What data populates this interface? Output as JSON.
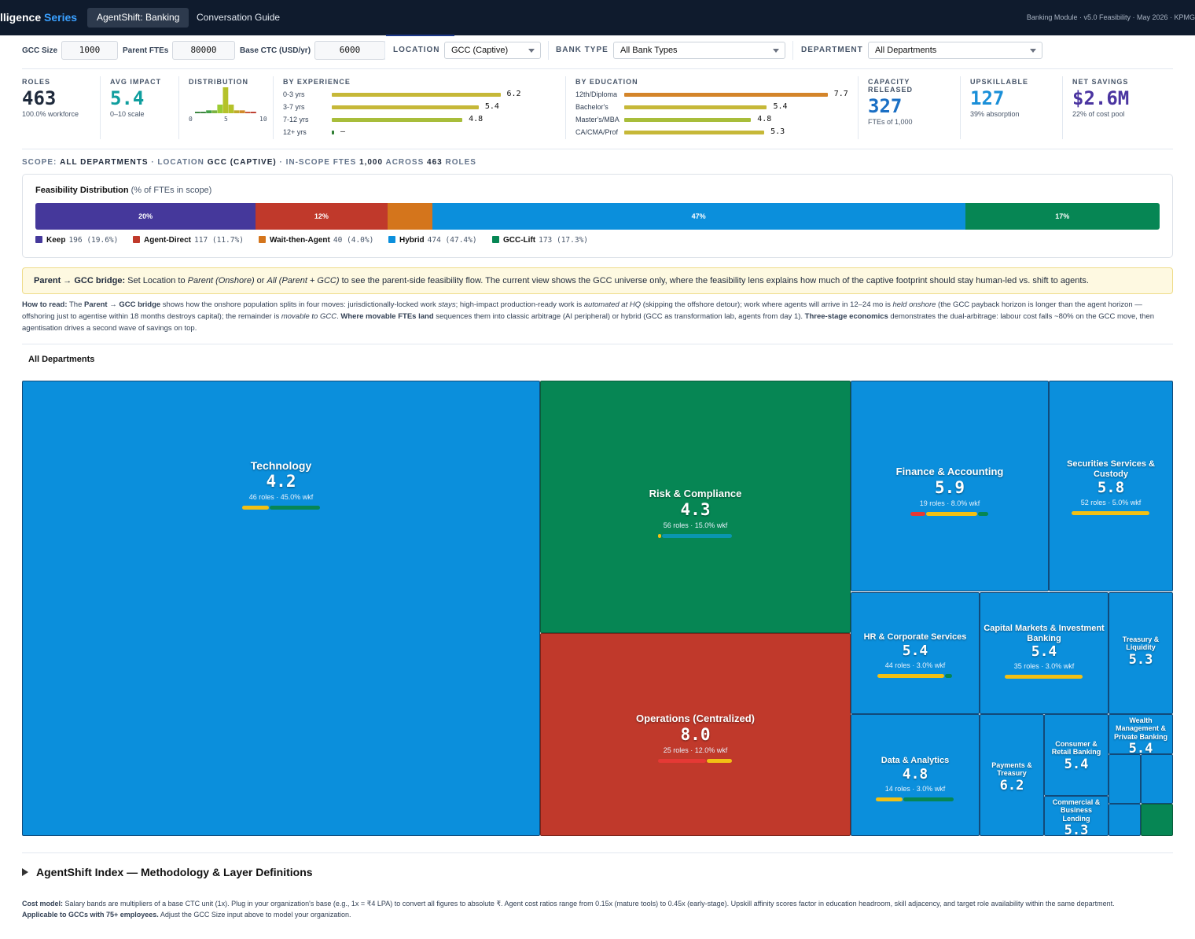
{
  "header": {
    "brand_main": "lligence ",
    "brand_accent": "Series",
    "tabs": [
      {
        "label": "AgentShift: Banking"
      },
      {
        "label": "Conversation Guide"
      }
    ],
    "info": "Banking Module · v5.0 Feasibility · May 2026 · KPMG"
  },
  "controls": {
    "gcc_size_label": "GCC Size",
    "gcc_size_value": "1000",
    "parent_ftes_label": "Parent FTEs",
    "parent_ftes_value": "80000",
    "base_ctc_label": "Base CTC (USD/yr)",
    "base_ctc_value": "6000",
    "location_label": "LOCATION",
    "location_value": "GCC (Captive)",
    "bank_type_label": "BANK TYPE",
    "bank_type_value": "All Bank Types",
    "department_label": "DEPARTMENT",
    "department_value": "All Departments"
  },
  "kpis": {
    "roles": {
      "label": "ROLES",
      "value": "463",
      "sub": "100.0% workforce"
    },
    "avg_impact": {
      "label": "AVG IMPACT",
      "value": "5.4",
      "sub": "0–10 scale"
    },
    "distribution": {
      "label": "DISTRIBUTION",
      "ticks": [
        "0",
        "5",
        "10"
      ],
      "bars": [
        0.5,
        0.5,
        1,
        1,
        3,
        9,
        3,
        1,
        1,
        0.5,
        0.5
      ],
      "colors": [
        "#2e7d32",
        "#2e7d32",
        "#43a047",
        "#7cb342",
        "#9ccc33",
        "#b5c22a",
        "#b5c22a",
        "#c0a92a",
        "#d08a2a",
        "#c74a2b",
        "#b93325"
      ]
    },
    "by_experience": {
      "label": "BY EXPERIENCE",
      "rows": [
        {
          "label": "0-3 yrs",
          "value": "6.2",
          "fraction": 0.62,
          "color": "#c6b838"
        },
        {
          "label": "3-7 yrs",
          "value": "5.4",
          "fraction": 0.54,
          "color": "#c6b838"
        },
        {
          "label": "7-12 yrs",
          "value": "4.8",
          "fraction": 0.48,
          "color": "#a8bd3a"
        },
        {
          "label": "12+ yrs",
          "value": "—",
          "fraction": 0.006,
          "color": "#2e7d32"
        }
      ]
    },
    "by_education": {
      "label": "BY EDUCATION",
      "rows": [
        {
          "label": "12th/Diploma",
          "value": "7.7",
          "fraction": 0.77,
          "color": "#d4852a"
        },
        {
          "label": "Bachelor's",
          "value": "5.4",
          "fraction": 0.54,
          "color": "#c6b838"
        },
        {
          "label": "Master's/MBA",
          "value": "4.8",
          "fraction": 0.48,
          "color": "#a8bd3a"
        },
        {
          "label": "CA/CMA/Prof",
          "value": "5.3",
          "fraction": 0.53,
          "color": "#c6b838"
        }
      ]
    },
    "capacity": {
      "label_line1": "CAPACITY",
      "label_line2": "RELEASED",
      "value": "327",
      "sub": "FTEs of 1,000"
    },
    "upskillable": {
      "label": "UPSKILLABLE",
      "value": "127",
      "sub": "39% absorption"
    },
    "net_savings": {
      "label": "NET SAVINGS",
      "value": "$2.6M",
      "sub": "22% of cost pool"
    }
  },
  "scope": {
    "prefix": "SCOPE: ",
    "dept": "ALL DEPARTMENTS",
    "mid": " · LOCATION ",
    "location": "GCC (CAPTIVE)",
    "mid2": " · IN-SCOPE FTES ",
    "ftes": "1,000",
    "mid3": " ACROSS ",
    "roles": "463",
    "suffix": " ROLES"
  },
  "feasibility": {
    "title": "Feasibility Distribution",
    "subtitle": "(% of FTEs in scope)",
    "segments": [
      {
        "name": "Keep",
        "count": "196",
        "pct_text": "(19.6%)",
        "fraction": 0.196,
        "label": "20%",
        "color": "#45389b"
      },
      {
        "name": "Agent-Direct",
        "count": "117",
        "pct_text": "(11.7%)",
        "fraction": 0.117,
        "label": "12%",
        "color": "#c0392b"
      },
      {
        "name": "Wait-then-Agent",
        "count": "40",
        "pct_text": "(4.0%)",
        "fraction": 0.04,
        "label": "",
        "color": "#d4751c"
      },
      {
        "name": "Hybrid",
        "count": "474",
        "pct_text": "(47.4%)",
        "fraction": 0.474,
        "label": "47%",
        "color": "#0b8fdc"
      },
      {
        "name": "GCC-Lift",
        "count": "173",
        "pct_text": "(17.3%)",
        "fraction": 0.173,
        "label": "17%",
        "color": "#068654"
      }
    ]
  },
  "bridge": {
    "bold": "Parent → GCC bridge:",
    "t1": " Set Location to ",
    "i1": "Parent (Onshore)",
    "t2": " or ",
    "i2": "All (Parent + GCC)",
    "t3": " to see the parent-side feasibility flow. The current view shows the GCC universe only, where the feasibility lens explains how much of the captive footprint should stay human-led vs. shift to agents."
  },
  "howto": {
    "b1": "How to read:",
    "t1": " The ",
    "b2": "Parent",
    "t2": " → ",
    "b3": "GCC bridge",
    "t3": " shows how the onshore population splits in four moves: jurisdictionally-locked work ",
    "i1": "stays",
    "t4": "; high-impact production-ready work is ",
    "i2": "automated at HQ",
    "t5": " (skipping the offshore detour); work where agents will arrive in 12–24 mo is ",
    "i3": "held onshore",
    "t6": " (the GCC payback horizon is longer than the agent horizon — offshoring just to agentise within 18 months destroys capital); the remainder is ",
    "i4": "movable to GCC",
    "t7": ". ",
    "b4": "Where movable FTEs land",
    "t8": " sequences them into classic arbitrage (AI peripheral) or hybrid (GCC as transformation lab, agents from day 1). ",
    "b5": "Three-stage economics",
    "t9": " demonstrates the dual-arbitrage: labour cost falls ~80% on the GCC move, then agentisation drives a second wave of savings on top."
  },
  "treemap": {
    "title": "All Departments",
    "tiles": [
      {
        "name": "Technology",
        "score": "4.2",
        "roles": "46 roles · 45.0% wkf",
        "color": "#0b8fdc",
        "bars": [
          {
            "f": 0.35,
            "c": "#f2c014"
          },
          {
            "f": 0.65,
            "c": "#068654"
          }
        ]
      },
      {
        "name": "Risk & Compliance",
        "score": "4.3",
        "roles": "56 roles · 15.0% wkf",
        "color": "#068654",
        "bars": [
          {
            "f": 0.06,
            "c": "#f2c014"
          },
          {
            "f": 0.94,
            "c": "#0a96b0"
          }
        ]
      },
      {
        "name": "Operations (Centralized)",
        "score": "8.0",
        "roles": "25 roles · 12.0% wkf",
        "color": "#c0392b",
        "bars": [
          {
            "f": 0.65,
            "c": "#e53935"
          },
          {
            "f": 0.35,
            "c": "#f2c014"
          }
        ]
      },
      {
        "name": "Finance & Accounting",
        "score": "5.9",
        "roles": "19 roles · 8.0% wkf",
        "color": "#0b8fdc",
        "bars": [
          {
            "f": 0.2,
            "c": "#e53935"
          },
          {
            "f": 0.66,
            "c": "#f2c014"
          },
          {
            "f": 0.14,
            "c": "#068654"
          }
        ]
      },
      {
        "name": "Securities Services & Custody",
        "score": "5.8",
        "roles": "52 roles · 5.0% wkf",
        "color": "#0b8fdc",
        "bars": [
          {
            "f": 1.0,
            "c": "#f2c014"
          }
        ]
      },
      {
        "name": "HR & Corporate Services",
        "score": "5.4",
        "roles": "44 roles · 3.0% wkf",
        "color": "#0b8fdc",
        "bars": [
          {
            "f": 0.9,
            "c": "#f2c014"
          },
          {
            "f": 0.1,
            "c": "#068654"
          }
        ]
      },
      {
        "name": "Capital Markets & Investment Banking",
        "score": "5.4",
        "roles": "35 roles · 3.0% wkf",
        "color": "#0b8fdc",
        "bars": [
          {
            "f": 1.0,
            "c": "#f2c014"
          }
        ]
      },
      {
        "name": "Treasury & Liquidity",
        "score": "5.3",
        "roles": "",
        "color": "#0b8fdc",
        "bars": []
      },
      {
        "name": "Data & Analytics",
        "score": "4.8",
        "roles": "14 roles · 3.0% wkf",
        "color": "#0b8fdc",
        "bars": [
          {
            "f": 0.35,
            "c": "#f2c014"
          },
          {
            "f": 0.65,
            "c": "#068654"
          }
        ]
      },
      {
        "name": "Payments & Treasury",
        "score": "6.2",
        "roles": "",
        "color": "#0b8fdc",
        "bars": []
      },
      {
        "name": "Consumer & Retail Banking",
        "score": "5.4",
        "roles": "",
        "color": "#0b8fdc",
        "bars": []
      },
      {
        "name": "Wealth Management & Private Banking",
        "score": "5.4",
        "roles": "",
        "color": "#0b8fdc",
        "bars": []
      },
      {
        "name": "Commercial & Business Lending",
        "score": "5.3",
        "roles": "",
        "color": "#0b8fdc",
        "bars": []
      },
      {
        "name": "",
        "score": "",
        "roles": "",
        "color": "#0b8fdc",
        "bars": []
      },
      {
        "name": "",
        "score": "",
        "roles": "",
        "color": "#0b8fdc",
        "bars": []
      },
      {
        "name": "",
        "score": "",
        "roles": "",
        "color": "#0b8fdc",
        "bars": []
      },
      {
        "name": "",
        "score": "",
        "roles": "",
        "color": "#068654",
        "bars": []
      }
    ]
  },
  "footer": {
    "methodology": "AgentShift Index — Methodology & Layer Definitions",
    "cost_b1": "Cost model:",
    "cost_t1": " Salary bands are multipliers of a base CTC unit (1x). Plug in your organization's base (e.g., 1x = ₹4 LPA) to convert all figures to absolute ₹. Agent cost ratios range from 0.15x (mature tools) to 0.45x (early-stage). Upskill affinity scores factor in education headroom, skill adjacency, and target role availability within the same department.",
    "cost_b2": "Applicable to GCCs with 75+ employees.",
    "cost_t2": " Adjust the GCC Size input above to model your organization."
  }
}
